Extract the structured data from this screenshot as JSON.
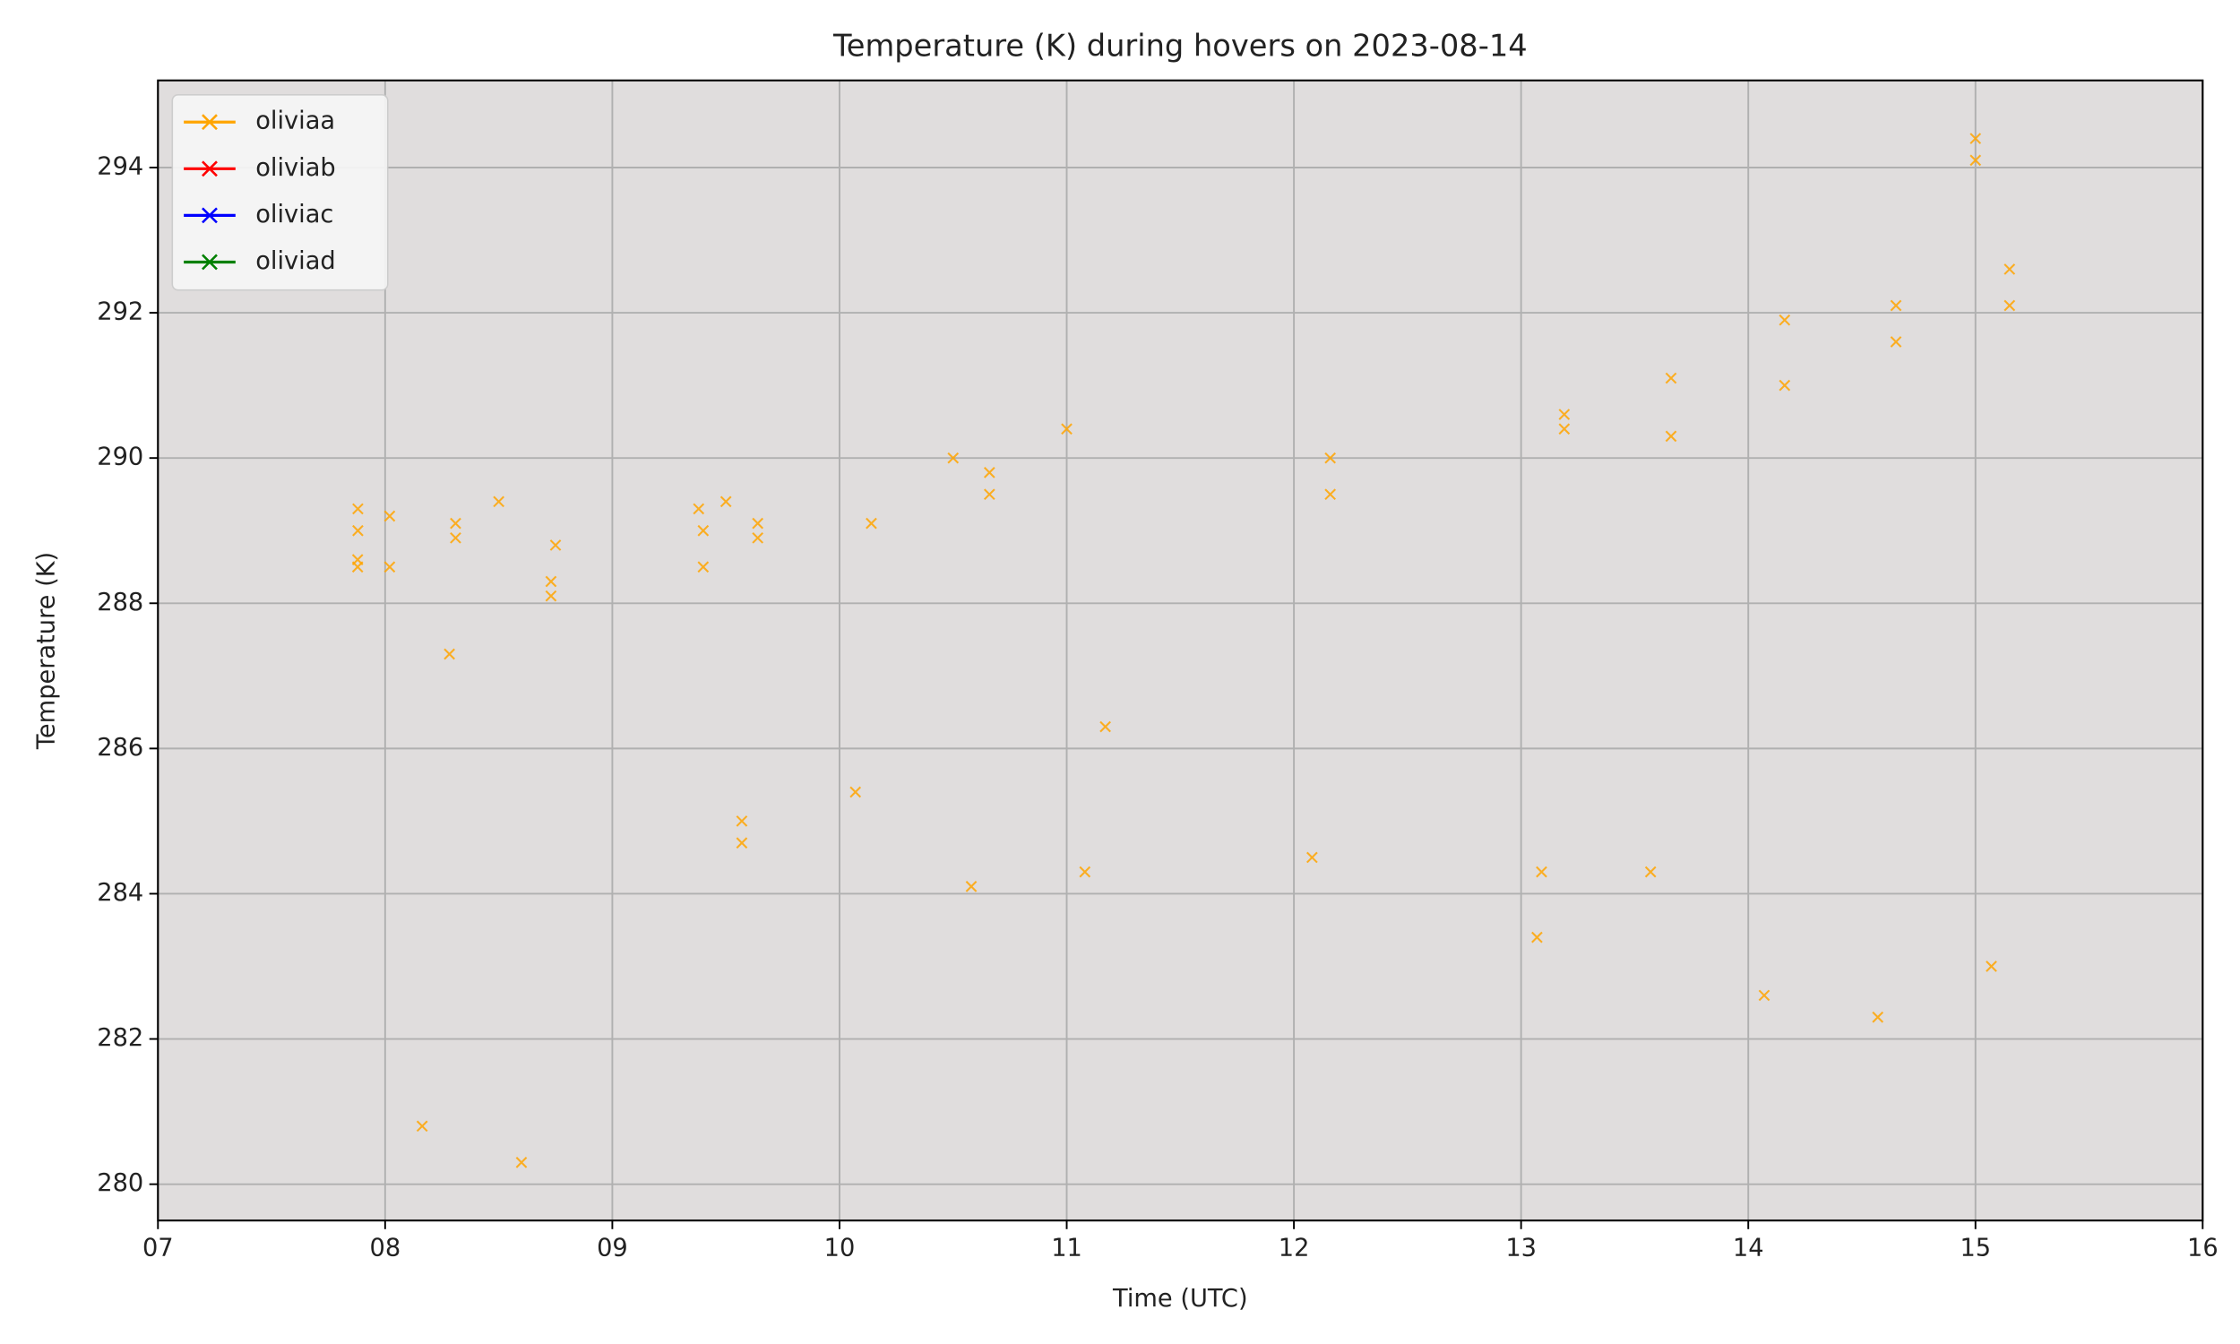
{
  "chart_data": {
    "type": "scatter",
    "title": "Temperature (K) during hovers on 2023-08-14",
    "x_label": "Time (UTC)",
    "y_label": "Temperature (K)",
    "xlim": [
      7,
      16
    ],
    "xticks": [
      {
        "value": 7,
        "label": "07"
      },
      {
        "value": 8,
        "label": "08"
      },
      {
        "value": 9,
        "label": "09"
      },
      10,
      11,
      12,
      13,
      14,
      15,
      16
    ],
    "ylim": [
      279.5,
      295.2
    ],
    "yticks": [
      280,
      282,
      284,
      286,
      288,
      290,
      292,
      294
    ],
    "grid": true,
    "legend": "upper left",
    "background": "#e0dddd",
    "series": [
      {
        "name": "oliviaa",
        "color": "#ffa500",
        "x": [
          7.879,
          7.879,
          7.88,
          7.88,
          8.02,
          8.02,
          8.163,
          8.283,
          8.31,
          8.31,
          8.5,
          8.6,
          8.73,
          8.73,
          8.75,
          9.38,
          9.4,
          9.4,
          9.5,
          9.57,
          9.57,
          9.64,
          9.64,
          10.07,
          10.14,
          10.5,
          10.58,
          10.66,
          10.66,
          11.0,
          11.08,
          11.17,
          12.08,
          12.16,
          12.16,
          13.07,
          13.09,
          13.19,
          13.19,
          13.57,
          13.66,
          13.66,
          14.07,
          14.16,
          14.16,
          14.57,
          14.65,
          14.65,
          15.0,
          15.0,
          15.07,
          15.15,
          15.15
        ],
        "values": [
          288.5,
          288.6,
          289.0,
          289.3,
          288.5,
          289.2,
          280.8,
          287.3,
          288.9,
          289.1,
          289.4,
          280.3,
          288.1,
          288.3,
          288.8,
          289.3,
          288.5,
          289.0,
          289.4,
          284.7,
          285.0,
          288.9,
          289.1,
          285.4,
          289.1,
          290.0,
          284.1,
          289.5,
          289.8,
          290.4,
          284.3,
          286.3,
          284.5,
          289.5,
          290.0,
          283.4,
          284.3,
          290.4,
          290.6,
          284.3,
          290.3,
          291.1,
          282.6,
          291.0,
          291.9,
          282.3,
          291.6,
          292.1,
          294.1,
          294.4,
          283.0,
          292.1,
          292.6
        ]
      },
      {
        "name": "oliviab",
        "color": "#ff0000",
        "x": [],
        "values": []
      },
      {
        "name": "oliviac",
        "color": "#0000ff",
        "x": [],
        "values": []
      },
      {
        "name": "oliviad",
        "color": "#008000",
        "x": [],
        "values": []
      }
    ]
  }
}
